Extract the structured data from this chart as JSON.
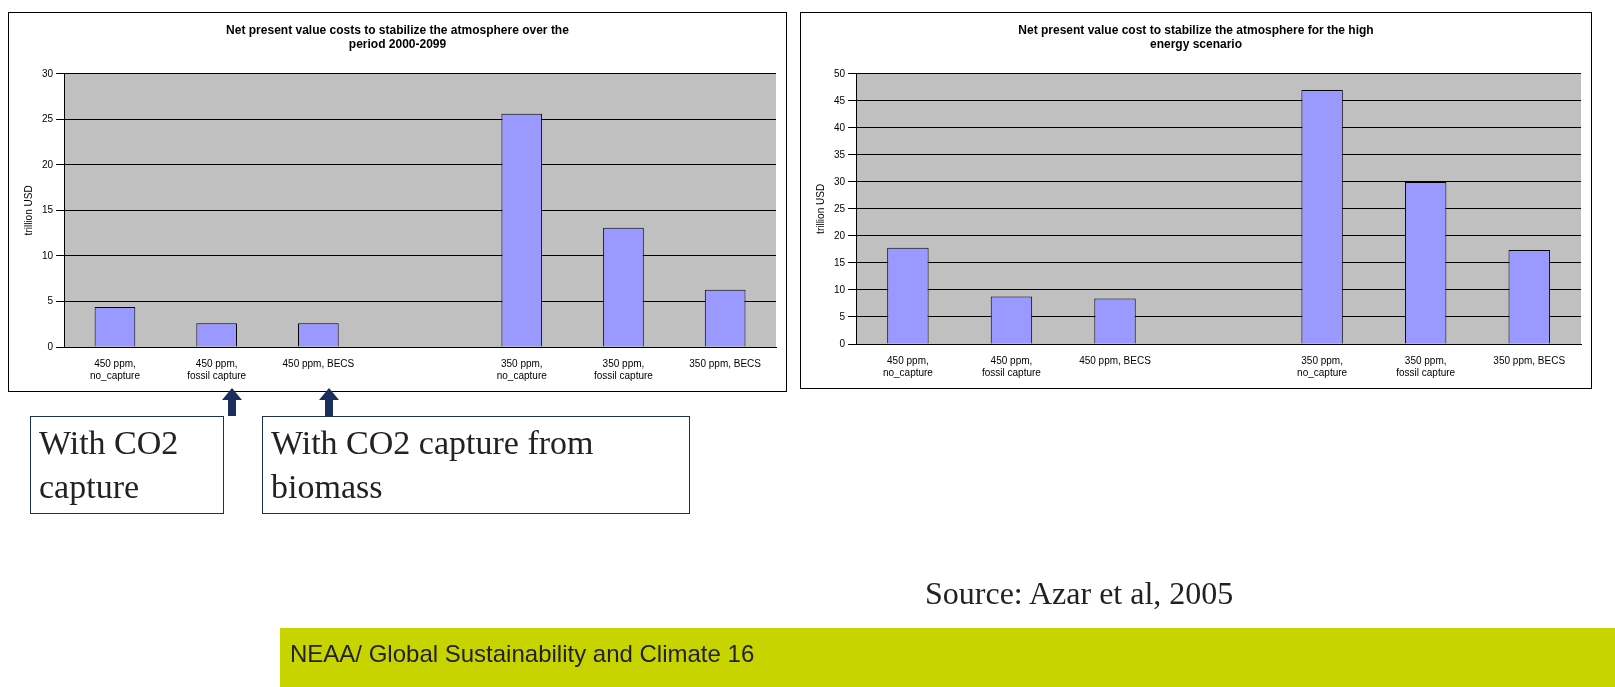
{
  "chart_data": [
    {
      "type": "bar",
      "title": "Net present value costs to stabilize the atmosphere over the period 2000-2099",
      "ylabel": "trillion USD",
      "categories": [
        "450 ppm, no_capture",
        "450 ppm, fossil capture",
        "450 ppm, BECS",
        null,
        "350 ppm, no_capture",
        "350 ppm, fossil capture",
        "350 ppm, BECS"
      ],
      "values": [
        4.4,
        2.6,
        2.6,
        null,
        25.6,
        13.1,
        6.3
      ],
      "color": "#9999ff",
      "ylim": [
        0,
        30
      ],
      "yticks": [
        0,
        5,
        10,
        15,
        20,
        25,
        30
      ],
      "grid": "y",
      "legend": false,
      "annotations": [
        "With CO2 capture",
        "With CO2 capture from biomass"
      ]
    },
    {
      "type": "bar",
      "title": "Net present value cost to stabilize the atmosphere for the high energy scenario",
      "ylabel": "trillion USD",
      "categories": [
        "450 ppm, no_capture",
        "450 ppm, fossil capture",
        "450 ppm, BECS",
        null,
        "350 ppm, no_capture",
        "350 ppm, fossil capture",
        "350 ppm, BECS"
      ],
      "values": [
        17.8,
        8.8,
        8.4,
        null,
        47,
        30,
        17.4
      ],
      "color": "#9999ff",
      "ylim": [
        0,
        50
      ],
      "yticks": [
        0,
        5,
        10,
        15,
        20,
        25,
        30,
        35,
        40,
        45,
        50
      ],
      "grid": "y",
      "legend": false,
      "annotations": [
        "Source: Azar et al, 2005",
        "NEAA/ Global Sustainability and Climate 16"
      ]
    }
  ]
}
